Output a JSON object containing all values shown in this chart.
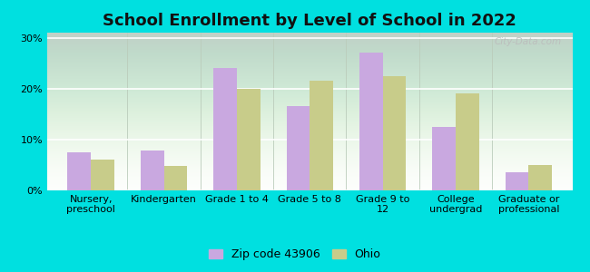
{
  "title": "School Enrollment by Level of School in 2022",
  "categories": [
    "Nursery,\npreschool",
    "Kindergarten",
    "Grade 1 to 4",
    "Grade 5 to 8",
    "Grade 9 to\n12",
    "College\nundergrad",
    "Graduate or\nprofessional"
  ],
  "zip_values": [
    7.5,
    7.8,
    24.0,
    16.5,
    27.0,
    12.5,
    3.5
  ],
  "ohio_values": [
    6.0,
    4.8,
    20.0,
    21.5,
    22.5,
    19.0,
    5.0
  ],
  "zip_color": "#c9a8e0",
  "ohio_color": "#c8cc8a",
  "background_color": "#00e0e0",
  "ylabel_ticks": [
    "0%",
    "10%",
    "20%",
    "30%"
  ],
  "yticks": [
    0,
    10,
    20,
    30
  ],
  "ylim": [
    0,
    31
  ],
  "legend_zip_label": "Zip code 43906",
  "legend_ohio_label": "Ohio",
  "title_fontsize": 13,
  "tick_fontsize": 8,
  "bar_width": 0.32,
  "watermark": "City-Data.com"
}
